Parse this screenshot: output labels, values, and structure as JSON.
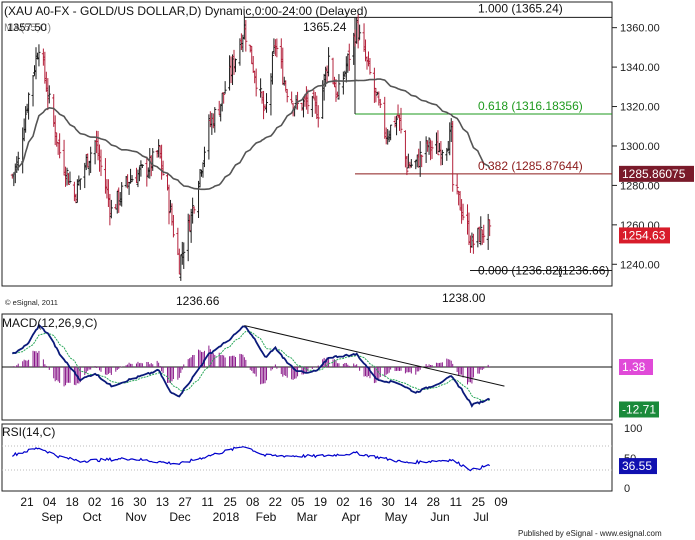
{
  "header": {
    "title": "(XAU A0-FX - GOLD/US DOLLAR,D) Dynamic,0:00-24:00 (Delayed)",
    "ma_label": "MA(55,C)",
    "ma_value": "1357.50",
    "copyright": "© eSignal, 2011",
    "footer": "Published by eSignal - www.esignal.com"
  },
  "colors": {
    "up": "#1a1a1a",
    "down": "#b3203a",
    "ma": "#555555",
    "fib_green": "#1e9a1e",
    "fib_red": "#8b1a1a",
    "macd": "#0a1a7a",
    "signal": "#2aa85a",
    "hist": "#8a1a8a",
    "rsi": "#0000cc",
    "price_tag": "#d81c2a",
    "fib_tag": "#7a1a2a",
    "macd_tag": "#e04ad8",
    "signal_tag": "#1a8a3a",
    "rsi_tag": "#1010b0"
  },
  "chart_data": [
    {
      "type": "candlestick",
      "panel": "price",
      "title": "(XAU A0-FX - GOLD/US DOLLAR,D) Dynamic,0:00-24:00 (Delayed)",
      "y_ticks": [
        "1240.00",
        "1260.00",
        "1280.00",
        "1300.00",
        "1320.00",
        "1340.00",
        "1360.00"
      ],
      "ylim": [
        1230,
        1372
      ],
      "x_tick_labels": [
        "21",
        "04",
        "18",
        "02",
        "16",
        "30",
        "13",
        "27",
        "11",
        "25",
        "08",
        "22",
        "05",
        "19",
        "02",
        "16",
        "30",
        "14",
        "28",
        "11",
        "25",
        "09"
      ],
      "x_month_labels": [
        "Sep",
        "Oct",
        "Nov",
        "Dec",
        "2018",
        "Feb",
        "Mar",
        "Apr",
        "May",
        "Jun",
        "Jul"
      ],
      "anchors": [
        [
          "2017-08-21",
          1285
        ],
        [
          "2017-08-25",
          1292
        ],
        [
          "2017-08-31",
          1322
        ],
        [
          "2017-09-08",
          1352
        ],
        [
          "2017-09-15",
          1322
        ],
        [
          "2017-09-22",
          1297
        ],
        [
          "2017-10-02",
          1275
        ],
        [
          "2017-10-10",
          1292
        ],
        [
          "2017-10-16",
          1302
        ],
        [
          "2017-10-27",
          1267
        ],
        [
          "2017-11-08",
          1283
        ],
        [
          "2017-11-15",
          1286
        ],
        [
          "2017-11-22",
          1290
        ],
        [
          "2017-11-28",
          1297
        ],
        [
          "2017-12-04",
          1275
        ],
        [
          "2017-12-12",
          1240
        ],
        [
          "2017-12-20",
          1265
        ],
        [
          "2018-01-01",
          1310
        ],
        [
          "2018-01-08",
          1320
        ],
        [
          "2018-01-16",
          1338
        ],
        [
          "2018-01-25",
          1360
        ],
        [
          "2018-02-02",
          1334
        ],
        [
          "2018-02-08",
          1315
        ],
        [
          "2018-02-15",
          1352
        ],
        [
          "2018-02-22",
          1330
        ],
        [
          "2018-03-01",
          1320
        ],
        [
          "2018-03-08",
          1322
        ],
        [
          "2018-03-16",
          1318
        ],
        [
          "2018-03-23",
          1345
        ],
        [
          "2018-03-29",
          1324
        ],
        [
          "2018-04-11",
          1360
        ],
        [
          "2018-04-20",
          1336
        ],
        [
          "2018-04-25",
          1322
        ],
        [
          "2018-05-01",
          1306
        ],
        [
          "2018-05-09",
          1315
        ],
        [
          "2018-05-15",
          1290
        ],
        [
          "2018-05-21",
          1291
        ],
        [
          "2018-05-29",
          1300
        ],
        [
          "2018-06-06",
          1298
        ],
        [
          "2018-06-14",
          1305
        ],
        [
          "2018-06-15",
          1280
        ],
        [
          "2018-06-21",
          1268
        ],
        [
          "2018-06-28",
          1250
        ],
        [
          "2018-07-03",
          1255
        ],
        [
          "2018-07-09",
          1258
        ],
        [
          "2018-07-10",
          1254.63
        ]
      ],
      "high": {
        "label": "1365.24",
        "value": 1365.24,
        "date": "2018-01-25"
      },
      "lows": [
        {
          "label": "1236.66",
          "value": 1236.66,
          "date": "2017-12-12"
        },
        {
          "label": "1238.00",
          "value": 1238.0,
          "date": "2018-07-03"
        }
      ],
      "fib_levels": [
        {
          "label": "1.000 (1365.24)",
          "value": 1365.24,
          "color": "#1a1a1a"
        },
        {
          "label": "0.618 (1316.18356)",
          "value": 1316.18356,
          "color": "#1e9a1e"
        },
        {
          "label": "0.382 (1285.87644)",
          "value": 1285.87644,
          "color": "#8b1a1a"
        },
        {
          "label": "0.000 (1236.82)",
          "value": 1236.82,
          "color": "#1a1a1a"
        }
      ],
      "fib_extra_label": "(1236.66)",
      "tags": {
        "last_price": "1254.63",
        "fib_tag": "1285.86075"
      },
      "series": [
        {
          "name": "MA(55,C)",
          "type": "line"
        }
      ]
    },
    {
      "type": "line",
      "panel": "macd",
      "title": "MACD(12,26,9,C)",
      "zero_line": 0,
      "ylim": [
        -16,
        16
      ],
      "macd_anchors": [
        [
          "2017-08-21",
          4
        ],
        [
          "2017-08-31",
          7
        ],
        [
          "2017-09-08",
          13
        ],
        [
          "2017-09-15",
          10
        ],
        [
          "2017-09-22",
          4
        ],
        [
          "2017-10-06",
          -4
        ],
        [
          "2017-10-16",
          -2
        ],
        [
          "2017-10-27",
          -6
        ],
        [
          "2017-11-08",
          -4
        ],
        [
          "2017-11-22",
          -2
        ],
        [
          "2017-11-28",
          -1
        ],
        [
          "2017-12-06",
          -8
        ],
        [
          "2017-12-12",
          -9
        ],
        [
          "2017-12-20",
          -4
        ],
        [
          "2018-01-01",
          4
        ],
        [
          "2018-01-16",
          9
        ],
        [
          "2018-01-25",
          13
        ],
        [
          "2018-02-02",
          8
        ],
        [
          "2018-02-08",
          3
        ],
        [
          "2018-02-15",
          6
        ],
        [
          "2018-02-22",
          2
        ],
        [
          "2018-03-01",
          -1
        ],
        [
          "2018-03-08",
          -2
        ],
        [
          "2018-03-16",
          -1
        ],
        [
          "2018-03-23",
          3
        ],
        [
          "2018-04-11",
          4
        ],
        [
          "2018-04-20",
          -1
        ],
        [
          "2018-04-25",
          -4
        ],
        [
          "2018-05-09",
          -5
        ],
        [
          "2018-05-21",
          -8
        ],
        [
          "2018-06-06",
          -5
        ],
        [
          "2018-06-14",
          -3
        ],
        [
          "2018-06-21",
          -7
        ],
        [
          "2018-06-28",
          -12
        ],
        [
          "2018-07-10",
          -10
        ]
      ],
      "trendline": [
        [
          "2018-01-25",
          13
        ],
        [
          "2018-07-20",
          -6
        ]
      ],
      "tags": {
        "macd": "1.38",
        "signal": "-12.71"
      }
    },
    {
      "type": "line",
      "panel": "rsi",
      "title": "RSI(14,C)",
      "y_ticks": [
        "0",
        "50",
        "100"
      ],
      "ylim": [
        0,
        100
      ],
      "ref_lines": [
        30,
        70
      ],
      "anchors": [
        [
          "2017-08-21",
          55
        ],
        [
          "2017-09-08",
          67
        ],
        [
          "2017-09-22",
          52
        ],
        [
          "2017-10-06",
          45
        ],
        [
          "2017-11-08",
          49
        ],
        [
          "2017-12-12",
          40
        ],
        [
          "2018-01-25",
          70
        ],
        [
          "2018-02-08",
          54
        ],
        [
          "2018-03-16",
          53
        ],
        [
          "2018-04-11",
          58
        ],
        [
          "2018-05-15",
          42
        ],
        [
          "2018-06-14",
          47
        ],
        [
          "2018-06-28",
          30
        ],
        [
          "2018-07-10",
          38
        ]
      ],
      "tags": {
        "rsi": "36.55"
      }
    }
  ]
}
